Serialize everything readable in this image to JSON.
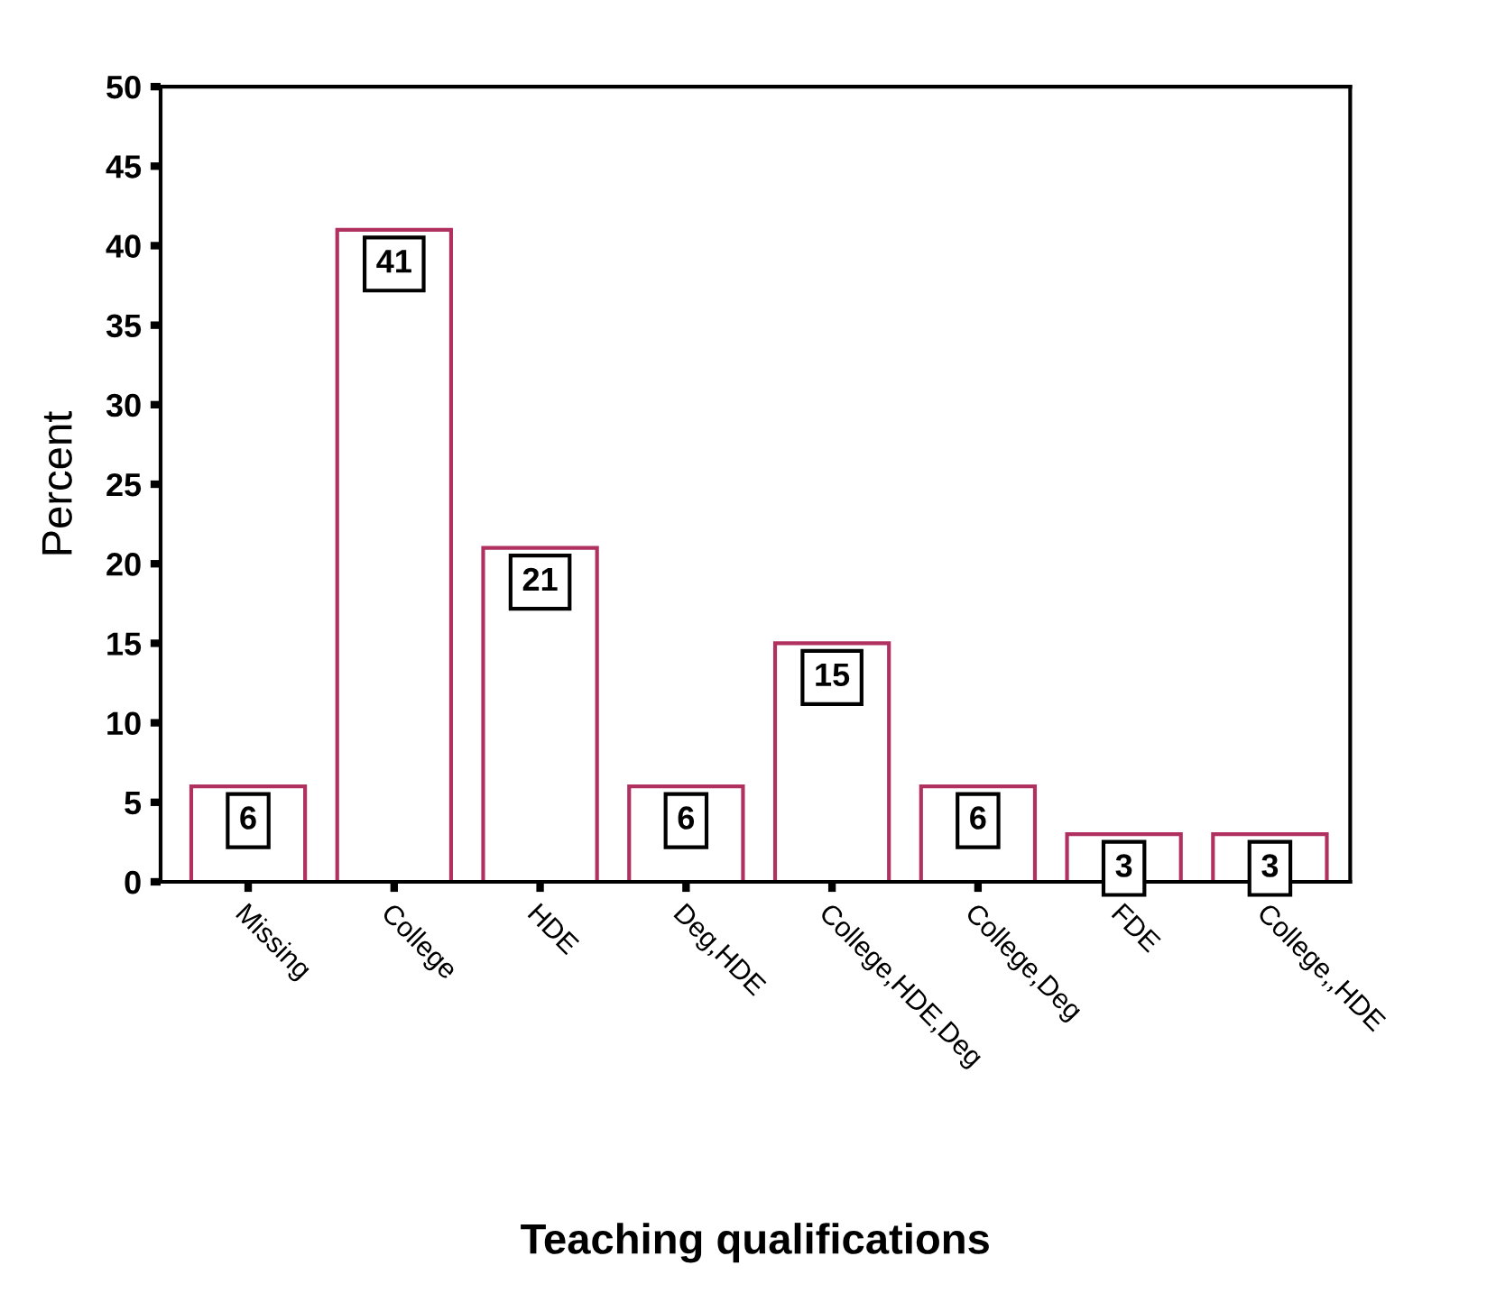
{
  "chart_data": {
    "type": "bar",
    "xlabel": "Teaching qualifications",
    "ylabel": "Percent",
    "categories": [
      "Missing",
      "College",
      "HDE",
      "Deg,HDE",
      "College,HDE,Deg",
      "College,Deg",
      "FDE",
      "College,,HDE"
    ],
    "values": [
      6,
      41,
      21,
      6,
      15,
      6,
      3,
      3
    ],
    "color": "#b03060",
    "ylim": [
      0,
      50
    ],
    "yticks": [
      0,
      5,
      10,
      15,
      20,
      25,
      30,
      35,
      40,
      45,
      50
    ],
    "data_labels": true,
    "grid": false,
    "legend": false
  }
}
